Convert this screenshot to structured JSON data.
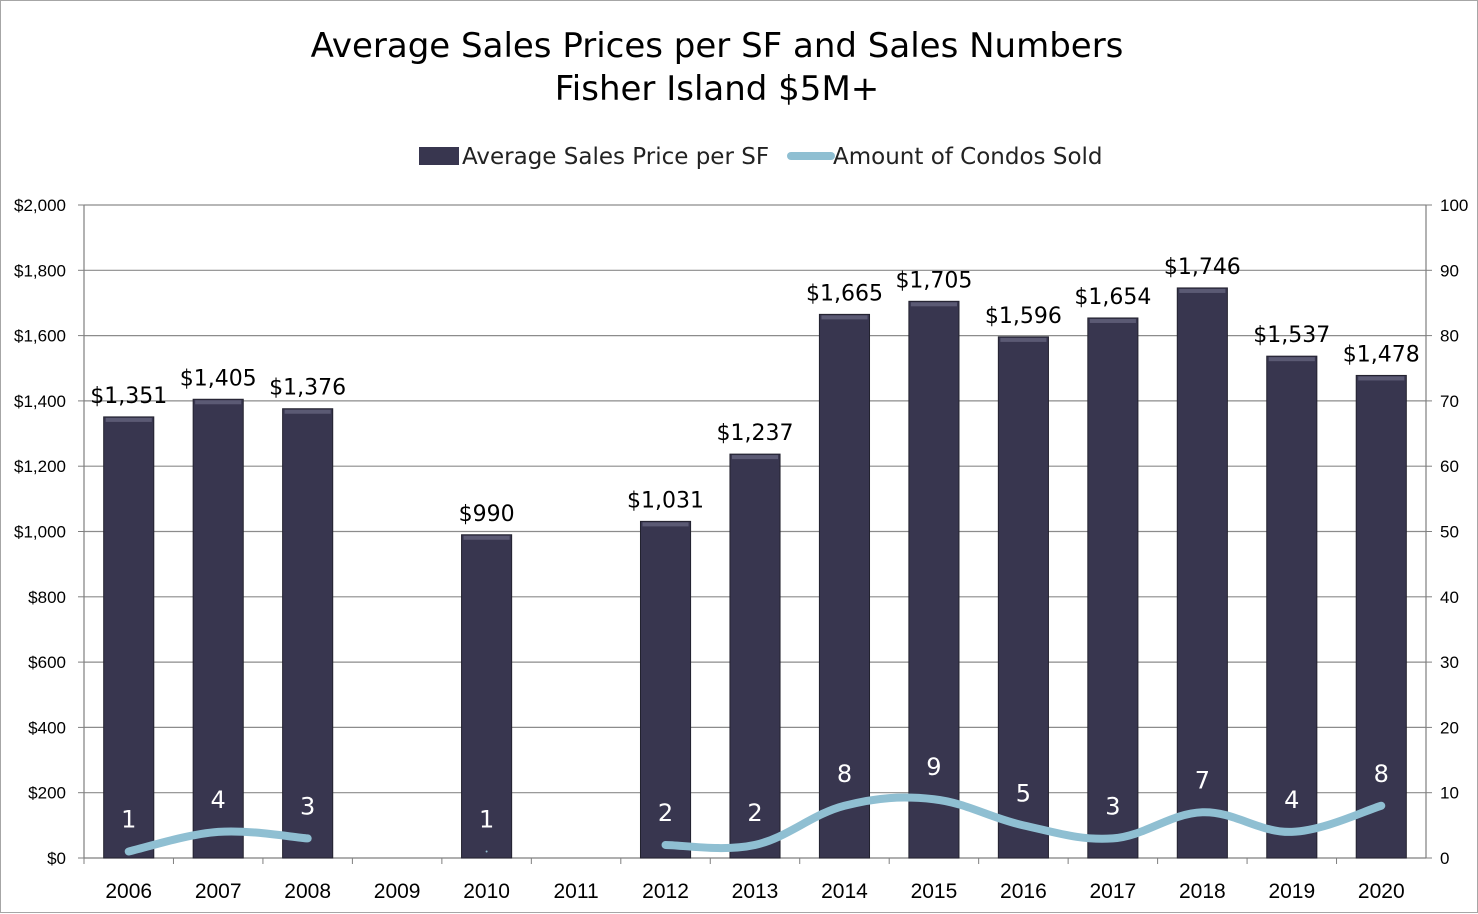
{
  "chart_data": {
    "type": "bar",
    "title": [
      "Average Sales Prices per SF and Sales Numbers",
      "Fisher Island $5M+"
    ],
    "categories": [
      "2006",
      "2007",
      "2008",
      "2009",
      "2010",
      "2011",
      "2012",
      "2013",
      "2014",
      "2015",
      "2016",
      "2017",
      "2018",
      "2019",
      "2020"
    ],
    "series": [
      {
        "name": "Average Sales Price per SF",
        "type": "bar",
        "axis": "left",
        "color": "#38364f",
        "values": [
          1351,
          1405,
          1376,
          null,
          990,
          null,
          1031,
          1237,
          1665,
          1705,
          1596,
          1654,
          1746,
          1537,
          1478
        ],
        "labels": [
          "$1,351",
          "$1,405",
          "$1,376",
          "",
          "$990",
          "",
          "$1,031",
          "$1,237",
          "$1,665",
          "$1,705",
          "$1,596",
          "$1,654",
          "$1,746",
          "$1,537",
          "$1,478"
        ]
      },
      {
        "name": "Amount of Condos Sold",
        "type": "line",
        "axis": "right",
        "color": "#8fbfd2",
        "values": [
          1,
          4,
          3,
          null,
          1,
          null,
          2,
          2,
          8,
          9,
          5,
          3,
          7,
          4,
          8
        ],
        "labels": [
          "1",
          "4",
          "3",
          "",
          "1",
          "",
          "2",
          "2",
          "8",
          "9",
          "5",
          "3",
          "7",
          "4",
          "8"
        ]
      }
    ],
    "y_left": {
      "min": 0,
      "max": 2000,
      "step": 200,
      "tick_labels": [
        "$0",
        "$200",
        "$400",
        "$600",
        "$800",
        "$1,000",
        "$1,200",
        "$1,400",
        "$1,600",
        "$1,800",
        "$2,000"
      ]
    },
    "y_right": {
      "min": 0,
      "max": 100,
      "step": 10,
      "tick_labels": [
        "0",
        "10",
        "20",
        "30",
        "40",
        "50",
        "60",
        "70",
        "80",
        "90",
        "100"
      ]
    },
    "grid": true,
    "legend_position": "top-center"
  }
}
